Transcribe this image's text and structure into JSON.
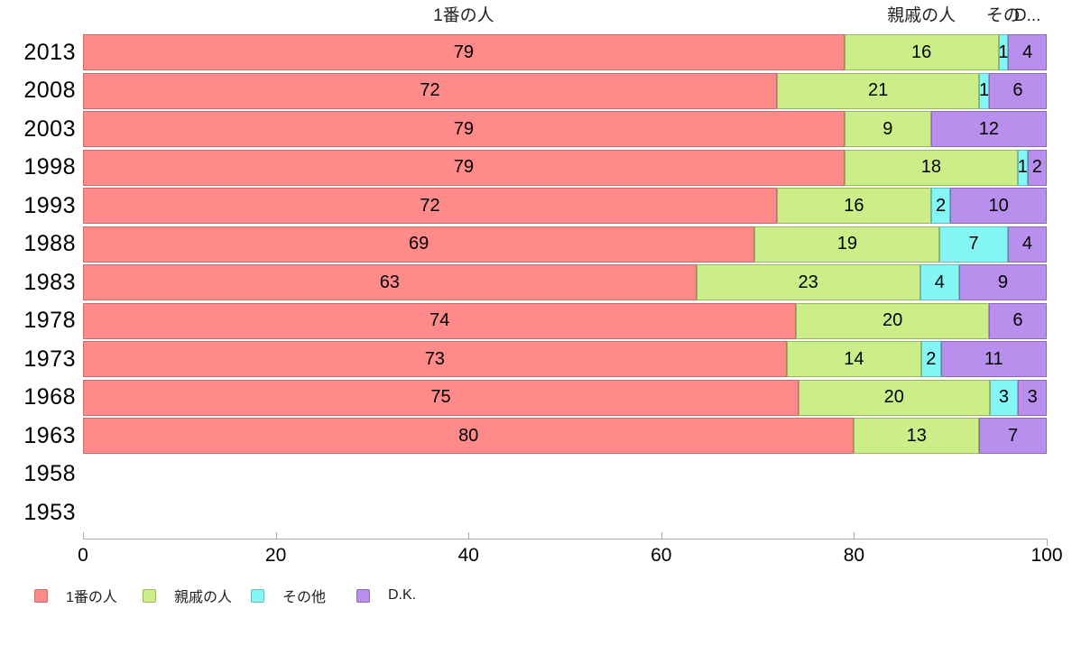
{
  "chart_data": {
    "type": "bar",
    "orientation": "horizontal-stacked",
    "title": "",
    "xlabel": "",
    "ylabel": "",
    "xlim": [
      0,
      100
    ],
    "x_ticks": [
      0,
      20,
      40,
      60,
      80,
      100
    ],
    "grid": false,
    "legend_position": "bottom",
    "categories": [
      "2013",
      "2008",
      "2003",
      "1998",
      "1993",
      "1988",
      "1983",
      "1978",
      "1973",
      "1968",
      "1963",
      "1958",
      "1953"
    ],
    "series": [
      {
        "name": "1番の人",
        "color": "#FF8A8A",
        "border_color": "#C96B6B",
        "values": [
          79,
          72,
          79,
          79,
          72,
          69,
          63,
          74,
          73,
          75,
          80,
          null,
          null
        ]
      },
      {
        "name": "親戚の人",
        "color": "#CCEE88",
        "border_color": "#97B85E",
        "values": [
          16,
          21,
          9,
          18,
          16,
          19,
          23,
          20,
          14,
          20,
          13,
          null,
          null
        ]
      },
      {
        "name": "その他",
        "color": "#85F6F6",
        "border_color": "#64BDBD",
        "values": [
          1,
          1,
          0,
          1,
          2,
          7,
          4,
          0,
          2,
          3,
          0,
          null,
          null
        ]
      },
      {
        "name": "D.K.",
        "color": "#B88FEC",
        "border_color": "#8D68BA",
        "values": [
          4,
          6,
          12,
          2,
          10,
          4,
          9,
          6,
          11,
          3,
          7,
          null,
          null
        ]
      }
    ],
    "top_series_labels": [
      "1番の人",
      "親戚の人",
      "その",
      "D..."
    ]
  },
  "legend": {
    "items": [
      {
        "label": "1番の人",
        "color": "#FF8A8A",
        "border_color": "#C96B6B"
      },
      {
        "label": "親戚の人",
        "color": "#CCEE88",
        "border_color": "#97B85E"
      },
      {
        "label": "その他",
        "color": "#85F6F6",
        "border_color": "#64BDBD"
      },
      {
        "label": "D.K.",
        "color": "#B88FEC",
        "border_color": "#8D68BA"
      }
    ]
  }
}
